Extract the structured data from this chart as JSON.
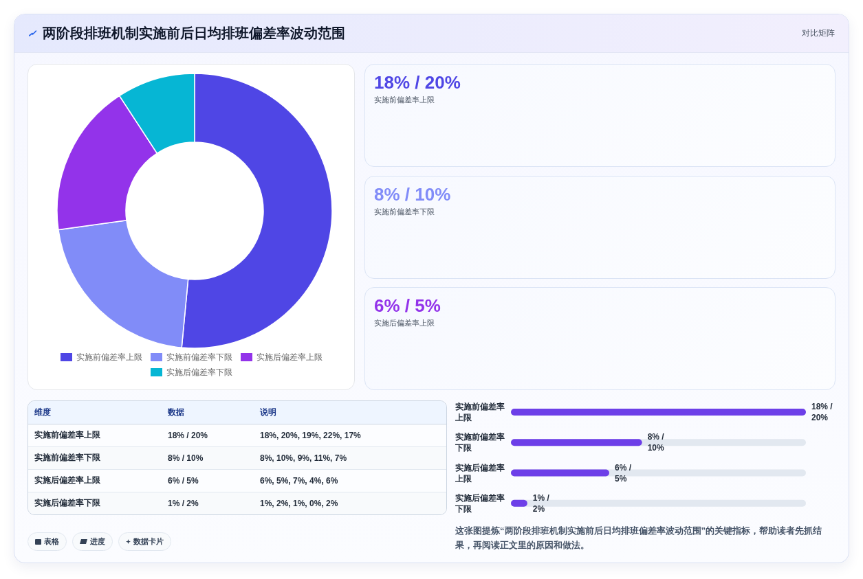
{
  "chart_data": [
    {
      "type": "other",
      "title": "两阶段排班机制实施前后日均排班偏差率波动范围",
      "subtitle": "对比矩阵"
    },
    {
      "type": "donut",
      "categories": [
        "实施前偏差率上限",
        "实施前偏差率下限",
        "实施后偏差率上限",
        "实施后偏差率下限"
      ],
      "values": [
        51.5,
        21.3,
        18,
        9.2
      ],
      "colors": [
        "#4f46e5",
        "#818cf8",
        "#9333ea",
        "#06b6d4"
      ],
      "legend": "bottom"
    },
    {
      "type": "other",
      "categories": [
        "实施前偏差率上限",
        "实施前偏差率下限",
        "实施后偏差率上限"
      ],
      "value_labels": [
        "18% / 20%",
        "8% / 10%",
        "6% / 5%"
      ]
    },
    {
      "type": "other",
      "categories": [
        "维度",
        "数据",
        "说明"
      ],
      "y_categories": [
        "实施前偏差率上限",
        "实施前偏差率下限",
        "实施后偏差率上限",
        "实施后偏差率下限"
      ],
      "cell_labels": [
        [
          "18% / 20%",
          "18%, 20%, 19%, 22%, 17%"
        ],
        [
          "8% / 10%",
          "8%, 10%, 9%, 11%, 7%"
        ],
        [
          "6% / 5%",
          "6%, 5%, 7%, 4%, 6%"
        ],
        [
          "1% / 2%",
          "1%, 2%, 1%, 0%, 2%"
        ]
      ],
      "annotations": [
        "表格",
        "进度",
        "数据卡片"
      ]
    },
    {
      "type": "bar",
      "orientation": "horizontal",
      "categories": [
        "实施前偏差率上限",
        "实施前偏差率下限",
        "实施后偏差率上限",
        "实施后偏差率下限"
      ],
      "values": [
        18,
        8,
        6,
        1
      ],
      "tick_labels": "y",
      "color": "#6d3fe8",
      "value_labels": [
        "18% / 20%",
        "8% / 10%",
        "6% / 5%",
        "1% / 2%"
      ],
      "annotations": [
        "这张图提炼“两阶段排班机制实施前后日均排班偏差率波动范围”的关键指标，帮助读者先抓结果，再阅读正文里的原因和做法。"
      ]
    }
  ]
}
